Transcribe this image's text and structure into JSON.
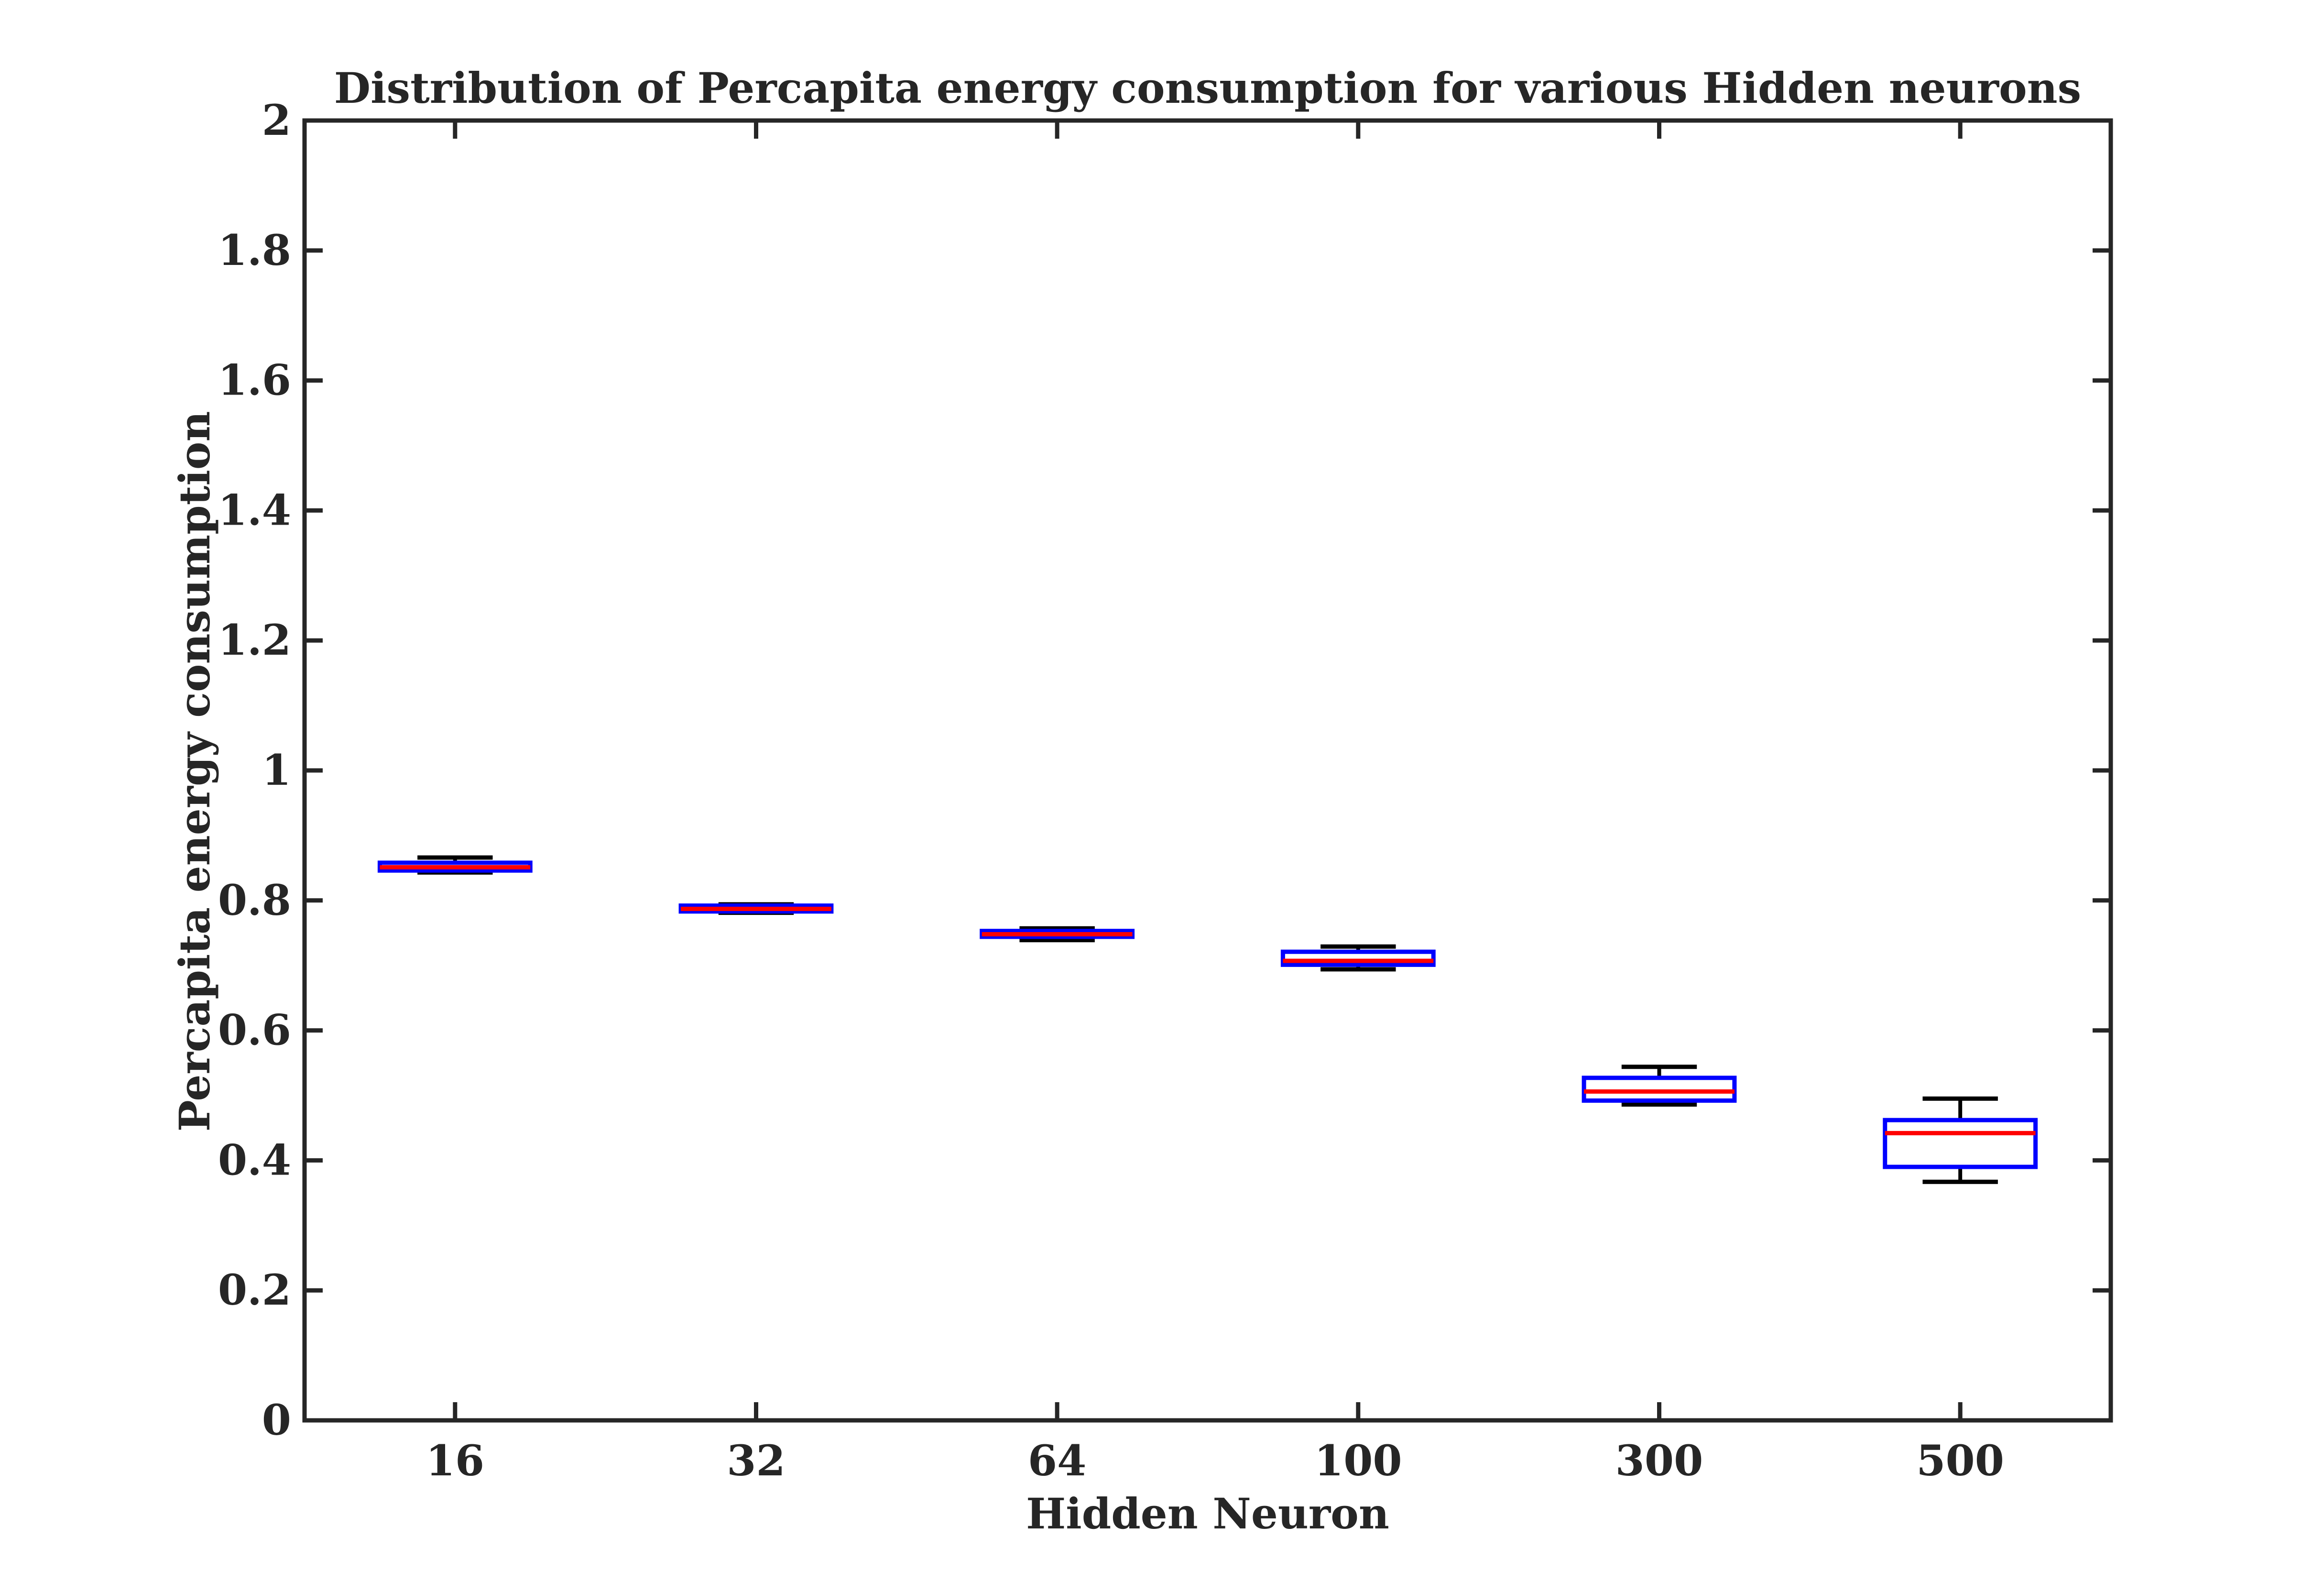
{
  "chart_data": {
    "type": "box",
    "title": "Distribution of Percapita energy consumption for various Hidden neurons",
    "xlabel": "Hidden Neuron",
    "ylabel": "Percapita energy consumption",
    "categories": [
      "16",
      "32",
      "64",
      "100",
      "300",
      "500"
    ],
    "ylim": [
      0,
      2
    ],
    "yticks": [
      "0",
      "0.2",
      "0.4",
      "0.6",
      "0.8",
      "1",
      "1.2",
      "1.4",
      "1.6",
      "1.8",
      "2"
    ],
    "grid": false,
    "boxes": [
      {
        "category": "16",
        "min": 0.843,
        "q1": 0.846,
        "median": 0.851,
        "q3": 0.858,
        "max": 0.866
      },
      {
        "category": "32",
        "min": 0.781,
        "q1": 0.783,
        "median": 0.787,
        "q3": 0.792,
        "max": 0.794
      },
      {
        "category": "64",
        "min": 0.739,
        "q1": 0.744,
        "median": 0.748,
        "q3": 0.753,
        "max": 0.757
      },
      {
        "category": "100",
        "min": 0.694,
        "q1": 0.701,
        "median": 0.707,
        "q3": 0.721,
        "max": 0.729
      },
      {
        "category": "300",
        "min": 0.486,
        "q1": 0.492,
        "median": 0.506,
        "q3": 0.527,
        "max": 0.544
      },
      {
        "category": "500",
        "min": 0.367,
        "q1": 0.39,
        "median": 0.442,
        "q3": 0.462,
        "max": 0.495
      }
    ],
    "colors": {
      "box": "#0000ff",
      "median": "#ff0000",
      "whisker": "#000000",
      "axis": "#262626"
    }
  }
}
